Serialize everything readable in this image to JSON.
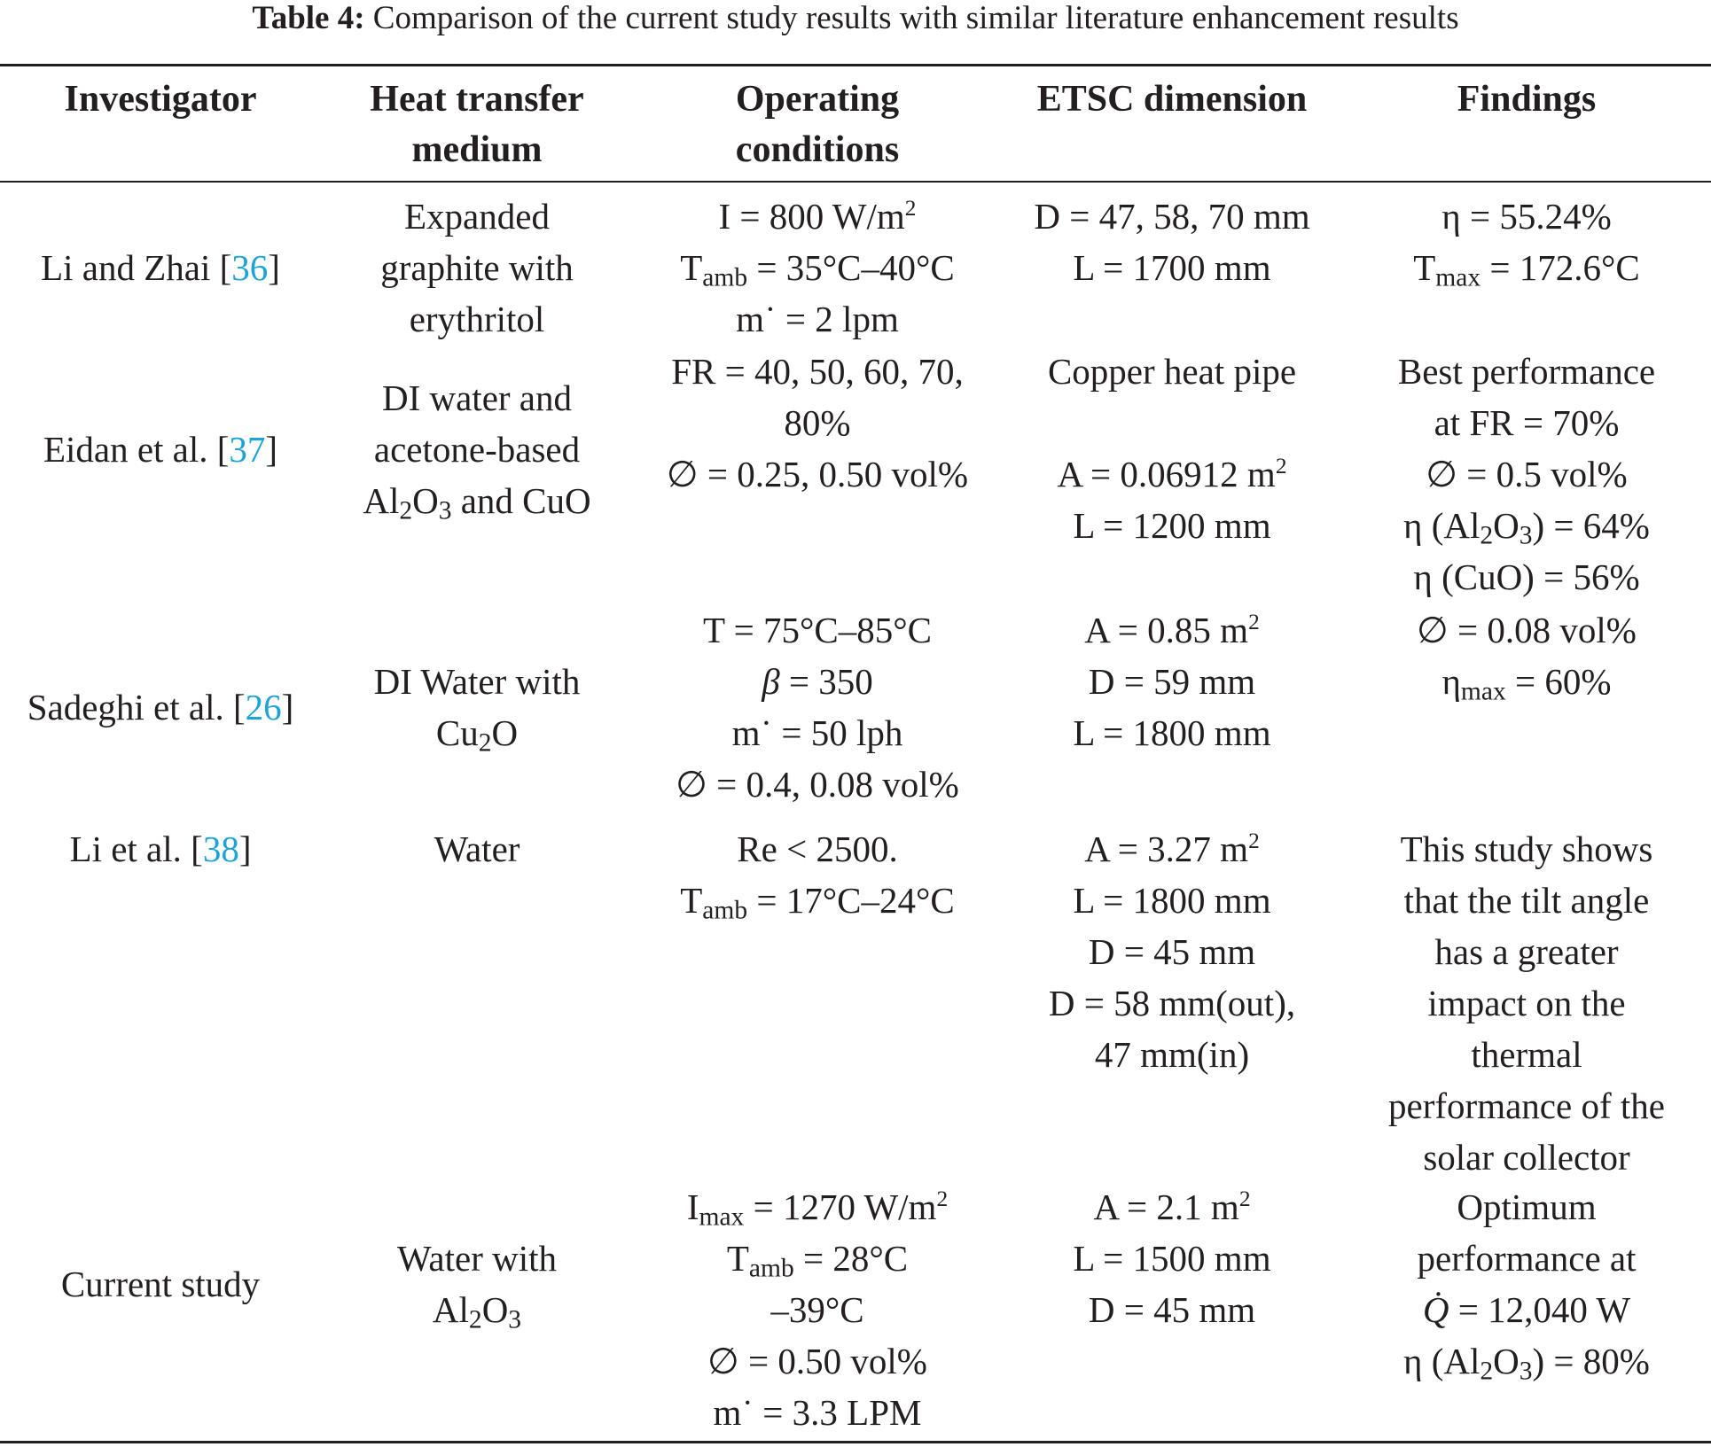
{
  "caption": {
    "label": "Table 4:",
    "text": " Comparison of the current study results with similar literature enhancement results"
  },
  "headers": {
    "investigator": "Investigator",
    "medium_1": "Heat transfer",
    "medium_2": "medium",
    "operating_1": "Operating",
    "operating_2": "conditions",
    "etsc": "ETSC dimension",
    "findings": "Findings"
  },
  "rows": [
    {
      "investigator": {
        "name": "Li and Zhai [",
        "ref": "36",
        "close": "]"
      },
      "medium": [
        "Expanded",
        "graphite with",
        "erythritol"
      ],
      "ops": {
        "l1": "I = 800 W/m",
        "l1_sup": "2",
        "l2_a": "T",
        "l2_sub": "amb",
        "l2_b": " = 35°C–40°C",
        "l3": "m˙ = 2 lpm"
      },
      "etsc": [
        "D = 47, 58, 70 mm",
        "L = 1700 mm"
      ],
      "findings": {
        "l1": "η = 55.24%",
        "l2_a": "T",
        "l2_sub": "max",
        "l2_b": " = 172.6°C"
      }
    },
    {
      "investigator": {
        "name": "Eidan et al. [",
        "ref": "37",
        "close": "]"
      },
      "medium": {
        "l1": "DI water and",
        "l2": "acetone-based",
        "l3_a": "Al",
        "l3_sub1": "2",
        "l3_b": "O",
        "l3_sub2": "3",
        "l3_c": " and CuO"
      },
      "ops": [
        "FR = 40, 50, 60, 70,",
        "80%",
        "∅ = 0.25, 0.50 vol%"
      ],
      "etsc": {
        "l1": "Copper heat pipe",
        "l2": "A = 0.06912 m",
        "l2_sup": "2",
        "l3": "L = 1200 mm"
      },
      "findings": {
        "l1": "Best performance",
        "l2": "at FR = 70%",
        "l3": "∅ = 0.5 vol%",
        "l4_a": "η (Al",
        "l4_sub1": "2",
        "l4_b": "O",
        "l4_sub2": "3",
        "l4_c": ") = 64%",
        "l5": "η (CuO) = 56%"
      }
    },
    {
      "investigator": {
        "name": "Sadeghi et al. [",
        "ref": "26",
        "close": "]"
      },
      "medium": {
        "l1": "DI Water with",
        "l2_a": "Cu",
        "l2_sub": "2",
        "l2_b": "O"
      },
      "ops": {
        "l1": "T = 75°C–85°C",
        "l2_sym": "β",
        "l2_b": " = 350",
        "l3": "m˙ = 50 lph",
        "l4": "∅ = 0.4, 0.08 vol%"
      },
      "etsc": {
        "l1": "A = 0.85 m",
        "l1_sup": "2",
        "l2": "D = 59 mm",
        "l3": "L = 1800 mm"
      },
      "findings": {
        "l1": "∅ = 0.08 vol%",
        "l2_a": "η",
        "l2_sub": "max",
        "l2_b": " = 60%"
      }
    },
    {
      "investigator": {
        "name": "Li et al. [",
        "ref": "38",
        "close": "]"
      },
      "medium": [
        "Water"
      ],
      "ops": {
        "l1": "Re < 2500.",
        "l2_a": "T",
        "l2_sub": "amb",
        "l2_b": " = 17°C–24°C"
      },
      "etsc": {
        "l1": "A = 3.27 m",
        "l1_sup": "2",
        "l2": "L = 1800 mm",
        "l3": "D = 45 mm",
        "l4": "D = 58 mm(out),",
        "l5": "47 mm(in)"
      },
      "findings": [
        "This study shows",
        "that the tilt angle",
        "has a greater",
        "impact on the",
        "thermal",
        "performance of the",
        "solar collector"
      ]
    },
    {
      "investigator": {
        "name": "Current study"
      },
      "medium": {
        "l1": "Water with",
        "l2_a": "Al",
        "l2_sub1": "2",
        "l2_b": "O",
        "l2_sub2": "3"
      },
      "ops": {
        "l1_a": "I",
        "l1_sub": "max",
        "l1_b": " = 1270 W/m",
        "l1_sup": "2",
        "l2_a": "T",
        "l2_sub": "amb",
        "l2_b": " = 28°C",
        "l3": "–39°C",
        "l4": "∅ = 0.50 vol%",
        "l5": "m˙ = 3.3 LPM"
      },
      "etsc": {
        "l1": "A = 2.1 m",
        "l1_sup": "2",
        "l2": "L = 1500 mm",
        "l3": "D = 45 mm"
      },
      "findings": {
        "l1": "Optimum",
        "l2": "performance at",
        "l3_sym": "Q̇",
        "l3_b": " = 12,040 W",
        "l4_a": "η (Al",
        "l4_sub1": "2",
        "l4_b": "O",
        "l4_sub2": "3",
        "l4_c": ") = 80%"
      }
    }
  ]
}
